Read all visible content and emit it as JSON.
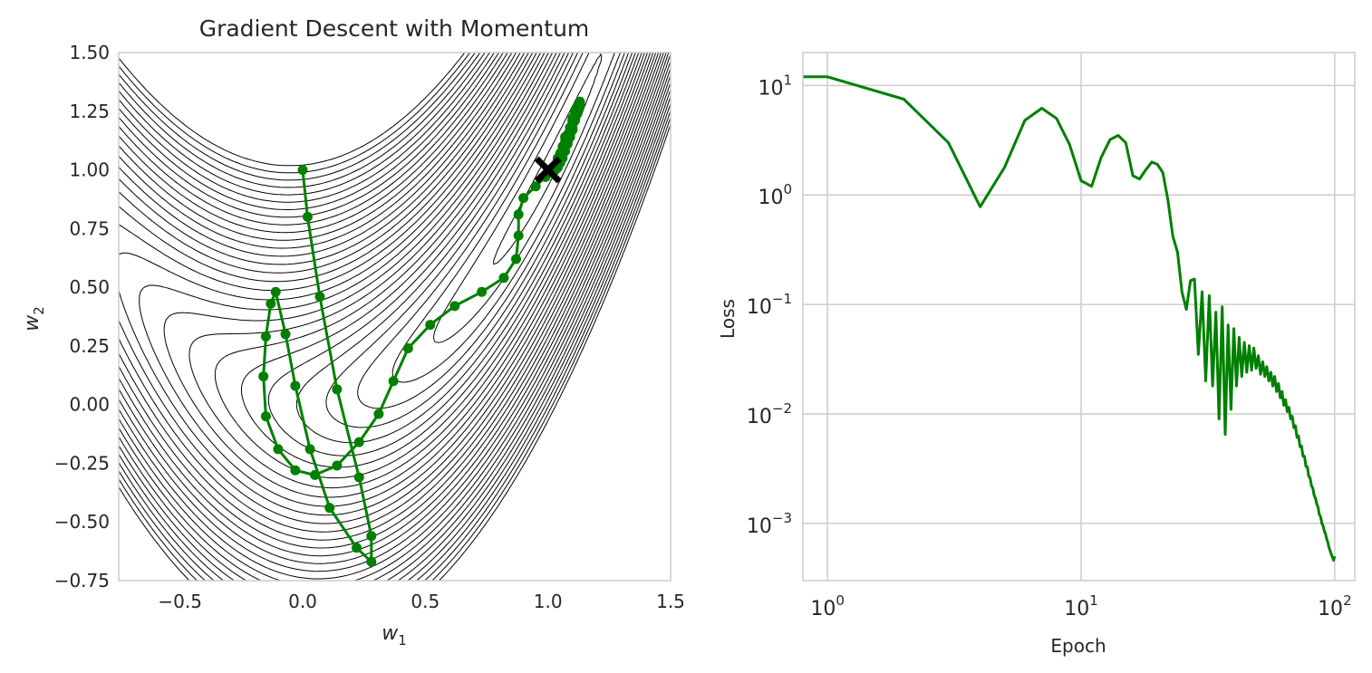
{
  "chart_data": [
    {
      "type": "contour+line",
      "title": "Gradient Descent with Momentum",
      "xlabel": "w1",
      "ylabel": "w2",
      "xlim": [
        -0.75,
        1.5
      ],
      "ylim": [
        -0.75,
        1.5
      ],
      "xticks": [
        -0.5,
        0.0,
        0.5,
        1.0,
        1.5
      ],
      "xtick_labels": [
        "−0.5",
        "0.0",
        "0.5",
        "1.0",
        "1.5"
      ],
      "yticks": [
        -0.75,
        -0.5,
        -0.25,
        0.0,
        0.25,
        0.5,
        0.75,
        1.0,
        1.25,
        1.5
      ],
      "ytick_labels": [
        "−0.75",
        "−0.50",
        "−0.25",
        "0.00",
        "0.25",
        "0.50",
        "0.75",
        "1.00",
        "1.25",
        "1.50"
      ],
      "grid": false,
      "contour_color": "#000000",
      "path_color": "#008000",
      "optimum_marker": {
        "x": 1.0,
        "y": 1.0,
        "marker": "X",
        "color": "#000000"
      },
      "path": [
        [
          0.0,
          1.0
        ],
        [
          0.02,
          0.8
        ],
        [
          0.07,
          0.46
        ],
        [
          0.14,
          0.065
        ],
        [
          0.23,
          -0.31
        ],
        [
          0.28,
          -0.56
        ],
        [
          0.28,
          -0.67
        ],
        [
          0.22,
          -0.61
        ],
        [
          0.11,
          -0.44
        ],
        [
          0.03,
          -0.19
        ],
        [
          -0.03,
          0.08
        ],
        [
          -0.07,
          0.3
        ],
        [
          -0.11,
          0.48
        ],
        [
          -0.13,
          0.43
        ],
        [
          -0.15,
          0.29
        ],
        [
          -0.16,
          0.12
        ],
        [
          -0.15,
          -0.05
        ],
        [
          -0.1,
          -0.19
        ],
        [
          -0.03,
          -0.28
        ],
        [
          0.05,
          -0.3
        ],
        [
          0.14,
          -0.26
        ],
        [
          0.23,
          -0.16
        ],
        [
          0.31,
          -0.04
        ],
        [
          0.37,
          0.1
        ],
        [
          0.43,
          0.24
        ],
        [
          0.52,
          0.34
        ],
        [
          0.62,
          0.42
        ],
        [
          0.73,
          0.48
        ],
        [
          0.82,
          0.54
        ],
        [
          0.87,
          0.62
        ],
        [
          0.88,
          0.72
        ],
        [
          0.88,
          0.81
        ],
        [
          0.9,
          0.88
        ],
        [
          0.95,
          0.93
        ],
        [
          0.99,
          0.97
        ],
        [
          1.02,
          1.0
        ],
        [
          1.04,
          1.05
        ],
        [
          1.06,
          1.1
        ],
        [
          1.07,
          1.14
        ],
        [
          1.09,
          1.18
        ],
        [
          1.1,
          1.22
        ],
        [
          1.11,
          1.25
        ],
        [
          1.12,
          1.27
        ],
        [
          1.13,
          1.29
        ],
        [
          1.13,
          1.29
        ],
        [
          1.13,
          1.28
        ],
        [
          1.13,
          1.27
        ],
        [
          1.12,
          1.24
        ],
        [
          1.11,
          1.21
        ],
        [
          1.1,
          1.17
        ],
        [
          1.09,
          1.14
        ],
        [
          1.08,
          1.11
        ],
        [
          1.07,
          1.08
        ],
        [
          1.06,
          1.05
        ],
        [
          1.05,
          1.03
        ],
        [
          1.04,
          1.01
        ],
        [
          1.03,
          1.0
        ],
        [
          1.02,
          0.99
        ],
        [
          1.02,
          0.99
        ],
        [
          1.02,
          1.0
        ],
        [
          1.03,
          1.02
        ],
        [
          1.04,
          1.04
        ],
        [
          1.05,
          1.07
        ],
        [
          1.06,
          1.09
        ],
        [
          1.07,
          1.12
        ],
        [
          1.08,
          1.15
        ],
        [
          1.09,
          1.18
        ],
        [
          1.1,
          1.21
        ],
        [
          1.11,
          1.23
        ],
        [
          1.12,
          1.25
        ],
        [
          1.12,
          1.27
        ],
        [
          1.13,
          1.28
        ],
        [
          1.13,
          1.29
        ],
        [
          1.13,
          1.29
        ],
        [
          1.13,
          1.28
        ],
        [
          1.12,
          1.27
        ],
        [
          1.12,
          1.25
        ],
        [
          1.11,
          1.23
        ],
        [
          1.1,
          1.21
        ],
        [
          1.1,
          1.19
        ],
        [
          1.09,
          1.17
        ],
        [
          1.09,
          1.15
        ],
        [
          1.08,
          1.14
        ],
        [
          1.08,
          1.13
        ],
        [
          1.08,
          1.12
        ],
        [
          1.08,
          1.12
        ],
        [
          1.08,
          1.13
        ],
        [
          1.09,
          1.14
        ],
        [
          1.09,
          1.15
        ],
        [
          1.1,
          1.17
        ],
        [
          1.1,
          1.18
        ],
        [
          1.1,
          1.2
        ],
        [
          1.11,
          1.21
        ],
        [
          1.11,
          1.22
        ],
        [
          1.11,
          1.23
        ],
        [
          1.12,
          1.24
        ],
        [
          1.12,
          1.24
        ],
        [
          1.12,
          1.25
        ],
        [
          1.12,
          1.25
        ],
        [
          1.12,
          1.25
        ],
        [
          1.12,
          1.25
        ]
      ]
    },
    {
      "type": "line",
      "title": "",
      "xlabel": "Epoch",
      "ylabel": "Loss",
      "xscale": "log",
      "yscale": "log",
      "xlim": [
        0.8,
        120
      ],
      "ylim": [
        0.0003,
        20
      ],
      "xticks": [
        1,
        10,
        100
      ],
      "xtick_labels": [
        {
          "base": "10",
          "exp": "0"
        },
        {
          "base": "10",
          "exp": "1"
        },
        {
          "base": "10",
          "exp": "2"
        }
      ],
      "yticks": [
        0.001,
        0.01,
        0.1,
        1,
        10
      ],
      "ytick_labels": [
        {
          "base": "10",
          "exp": "−3"
        },
        {
          "base": "10",
          "exp": "−2"
        },
        {
          "base": "10",
          "exp": "−1"
        },
        {
          "base": "10",
          "exp": "0"
        },
        {
          "base": "10",
          "exp": "1"
        }
      ],
      "grid": true,
      "line_color": "#008000",
      "x": [
        0,
        1,
        2,
        3,
        4,
        5,
        6,
        7,
        8,
        9,
        10,
        11,
        12,
        13,
        14,
        15,
        16,
        17,
        18,
        19,
        20,
        21,
        22,
        23,
        24,
        25,
        26,
        27,
        28,
        29,
        30,
        31,
        32,
        33,
        34,
        35,
        36,
        37,
        38,
        39,
        40,
        41,
        42,
        43,
        44,
        45,
        46,
        47,
        48,
        49,
        50,
        51,
        52,
        53,
        54,
        55,
        56,
        57,
        58,
        59,
        60,
        61,
        62,
        63,
        64,
        65,
        66,
        67,
        68,
        69,
        70,
        71,
        72,
        73,
        74,
        75,
        76,
        77,
        78,
        79,
        80,
        81,
        82,
        83,
        84,
        85,
        86,
        87,
        88,
        89,
        90,
        91,
        92,
        93,
        94,
        95,
        96,
        97,
        98,
        99,
        100
      ],
      "series": [
        {
          "name": "",
          "values": [
            12,
            12,
            7.5,
            3,
            0.78,
            1.8,
            4.8,
            6.2,
            5.0,
            2.9,
            1.35,
            1.2,
            2.2,
            3.2,
            3.5,
            3.0,
            1.5,
            1.4,
            1.7,
            2.0,
            1.9,
            1.6,
            0.9,
            0.42,
            0.3,
            0.13,
            0.09,
            0.165,
            0.17,
            0.035,
            0.13,
            0.02,
            0.12,
            0.018,
            0.085,
            0.009,
            0.095,
            0.0065,
            0.065,
            0.011,
            0.06,
            0.018,
            0.05,
            0.022,
            0.045,
            0.024,
            0.042,
            0.025,
            0.04,
            0.026,
            0.034,
            0.023,
            0.03,
            0.022,
            0.027,
            0.02,
            0.024,
            0.018,
            0.022,
            0.016,
            0.019,
            0.014,
            0.016,
            0.012,
            0.0135,
            0.0105,
            0.0115,
            0.009,
            0.0095,
            0.0075,
            0.0078,
            0.0061,
            0.0063,
            0.005,
            0.0051,
            0.0041,
            0.0041,
            0.0033,
            0.0033,
            0.0027,
            0.0026,
            0.0022,
            0.0021,
            0.0018,
            0.0017,
            0.0015,
            0.0014,
            0.0012,
            0.00115,
            0.001,
            0.00095,
            0.00085,
            0.0008,
            0.00072,
            0.00067,
            0.0006,
            0.00056,
            0.00052,
            0.00049,
            0.00046,
            0.0005
          ]
        }
      ]
    }
  ]
}
